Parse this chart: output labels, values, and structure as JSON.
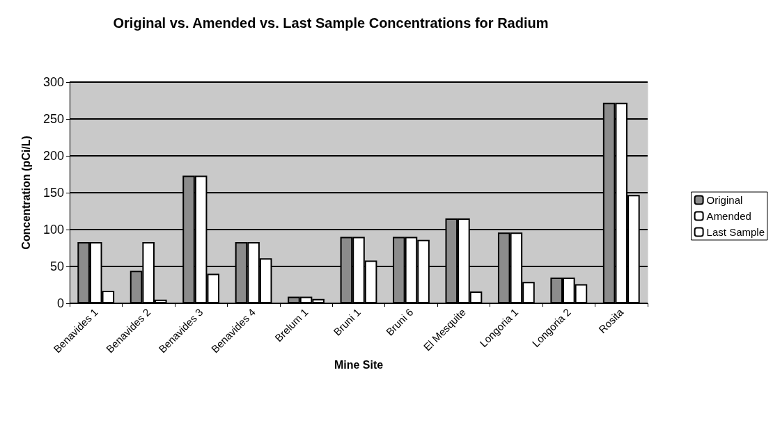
{
  "chart_data": {
    "type": "bar",
    "title": "Original vs. Amended vs. Last Sample Concentrations for Radium",
    "xlabel": "Mine Site",
    "ylabel": "Concentration (pCi/L)",
    "categories": [
      "Benavides 1",
      "Benavides 2",
      "Benavides 3",
      "Benavides 4",
      "Brelum 1",
      "Bruni 1",
      "Bruni 6",
      "El Mesquite",
      "Longoria 1",
      "Longoria 2",
      "Rosita"
    ],
    "series": [
      {
        "name": "Original",
        "color": "#8c8c8c",
        "values": [
          83,
          44,
          173,
          83,
          9,
          90,
          90,
          115,
          96,
          35,
          272
        ]
      },
      {
        "name": "Amended",
        "color": "#ffffff",
        "values": [
          83,
          83,
          173,
          83,
          9,
          90,
          90,
          115,
          96,
          35,
          272
        ]
      },
      {
        "name": "Last Sample",
        "color": "#ffffff",
        "values": [
          17,
          5,
          40,
          61,
          6,
          58,
          86,
          16,
          29,
          26,
          147
        ]
      }
    ],
    "ylim": [
      0,
      300
    ],
    "yticks": [
      0,
      50,
      100,
      150,
      200,
      250,
      300
    ],
    "grid": "y",
    "legend": "right"
  }
}
